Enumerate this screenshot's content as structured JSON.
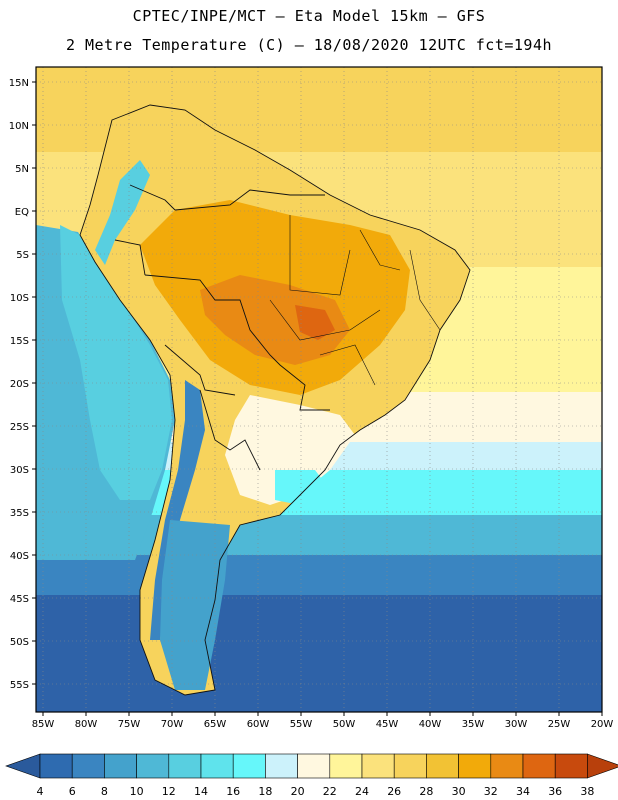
{
  "title_line1": "CPTEC/INPE/MCT –  Eta Model 15km – GFS",
  "title_line2": "2 Metre Temperature (C) – 18/08/2020 12UTC fct=194h",
  "lat_labels": [
    "15N",
    "10N",
    "5N",
    "EQ",
    "5S",
    "10S",
    "15S",
    "20S",
    "25S",
    "30S",
    "35S",
    "40S",
    "45S",
    "50S",
    "55S"
  ],
  "lon_labels": [
    "85W",
    "80W",
    "75W",
    "70W",
    "65W",
    "60W",
    "55W",
    "50W",
    "45W",
    "40W",
    "35W",
    "30W",
    "25W",
    "20W"
  ],
  "colorbar": {
    "values": [
      "4",
      "6",
      "8",
      "10",
      "12",
      "14",
      "16",
      "18",
      "20",
      "22",
      "24",
      "26",
      "28",
      "30",
      "32",
      "34",
      "36",
      "38"
    ],
    "colors": [
      "#2e6bb0",
      "#3a85c1",
      "#44a2cc",
      "#4fb8d6",
      "#58cfe0",
      "#5fe3ec",
      "#66f7fa",
      "#ccf2fb",
      "#fff8e0",
      "#fff59a",
      "#fbe27c",
      "#f7d35c",
      "#f2c234",
      "#f2aa0a",
      "#e98a14",
      "#de6611",
      "#c84a0d"
    ],
    "left_arrow_color": "#2a5a9c",
    "right_arrow_color": "#b8400c"
  },
  "palette": {
    "ocean_deep": "#2e62a8",
    "ocean_mid": "#3a87c2",
    "ocean_light": "#4fb6d6",
    "cyan": "#66f3fa",
    "pale_cyan": "#cff3fb",
    "cream": "#fff7e0",
    "yellow": "#fbe27c",
    "warm": "#f7d35c",
    "orange": "#f2aa0a",
    "hot": "#e98a14"
  }
}
